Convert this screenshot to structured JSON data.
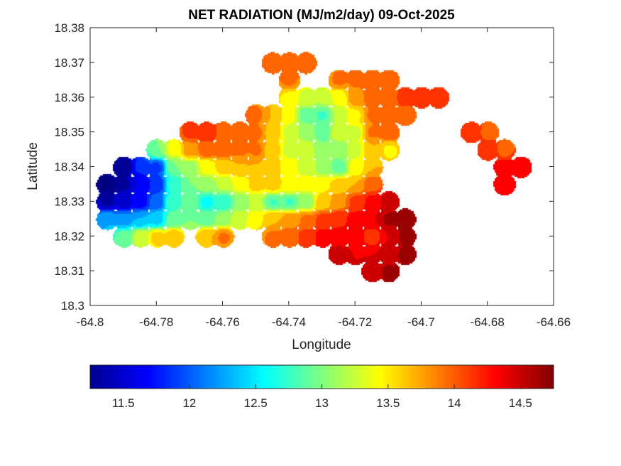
{
  "chart_data": {
    "type": "heatmap",
    "title": "NET RADIATION (MJ/m2/day) 09-Oct-2025",
    "xlabel": "Longitude",
    "ylabel": "Latitude",
    "xlim": [
      -64.8,
      -64.66
    ],
    "ylim": [
      18.3,
      18.38
    ],
    "xticks": [
      -64.8,
      -64.78,
      -64.76,
      -64.74,
      -64.72,
      -64.7,
      -64.68,
      -64.66
    ],
    "xtick_labels": [
      "-64.8",
      "-64.78",
      "-64.76",
      "-64.74",
      "-64.72",
      "-64.7",
      "-64.68",
      "-64.66"
    ],
    "yticks": [
      18.3,
      18.31,
      18.32,
      18.33,
      18.34,
      18.35,
      18.36,
      18.37,
      18.38
    ],
    "ytick_labels": [
      "18.3",
      "18.31",
      "18.32",
      "18.33",
      "18.34",
      "18.35",
      "18.36",
      "18.37",
      "18.38"
    ],
    "grid": false,
    "colormap": "jet",
    "clim": [
      11.25,
      14.75
    ],
    "colorbar": {
      "location": "bottom",
      "ticks": [
        11.5,
        12,
        12.5,
        13,
        13.5,
        14,
        14.5
      ],
      "tick_labels": [
        "11.5",
        "12",
        "12.5",
        "13",
        "13.5",
        "14",
        "14.5"
      ]
    },
    "contour_levels": 20,
    "grid_data": {
      "note": "values in MJ/m2/day sampled at approximate lon/lat points over land; null = no data (sea)",
      "lon": [
        -64.795,
        -64.79,
        -64.785,
        -64.78,
        -64.775,
        -64.77,
        -64.765,
        -64.76,
        -64.755,
        -64.75,
        -64.745,
        -64.74,
        -64.735,
        -64.73,
        -64.725,
        -64.72,
        -64.715,
        -64.71,
        -64.705,
        -64.7,
        -64.695,
        -64.69,
        -64.685,
        -64.68,
        -64.675,
        -64.67,
        -64.665
      ],
      "lat": [
        18.37,
        18.365,
        18.36,
        18.355,
        18.35,
        18.345,
        18.34,
        18.335,
        18.33,
        18.325,
        18.32,
        18.315,
        18.31
      ],
      "values": [
        [
          null,
          null,
          null,
          null,
          null,
          null,
          null,
          null,
          null,
          null,
          14.0,
          14.0,
          14.0,
          null,
          null,
          null,
          null,
          null,
          null,
          null,
          null,
          null,
          null,
          null,
          null,
          null,
          null
        ],
        [
          null,
          null,
          null,
          null,
          null,
          null,
          null,
          null,
          null,
          null,
          null,
          13.9,
          null,
          null,
          13.9,
          13.9,
          14.0,
          14.0,
          null,
          null,
          null,
          null,
          null,
          null,
          null,
          null,
          null
        ],
        [
          null,
          null,
          null,
          null,
          null,
          null,
          null,
          null,
          null,
          null,
          null,
          13.5,
          13.3,
          13.2,
          13.4,
          13.8,
          14.0,
          14.0,
          14.1,
          14.1,
          14.1,
          null,
          null,
          null,
          null,
          null,
          null
        ],
        [
          null,
          null,
          null,
          null,
          null,
          null,
          null,
          null,
          null,
          13.9,
          13.7,
          13.4,
          12.9,
          12.8,
          13.2,
          13.5,
          13.9,
          14.0,
          14.0,
          null,
          null,
          null,
          null,
          null,
          null,
          null,
          null
        ],
        [
          null,
          null,
          null,
          null,
          null,
          14.1,
          14.2,
          14.0,
          14.0,
          13.9,
          13.6,
          13.3,
          13.1,
          12.9,
          13.3,
          13.3,
          13.9,
          14.0,
          null,
          null,
          null,
          null,
          14.2,
          14.0,
          null,
          null,
          null
        ],
        [
          null,
          null,
          null,
          13.0,
          13.4,
          13.8,
          14.0,
          14.0,
          13.9,
          13.9,
          13.6,
          13.3,
          13.3,
          13.0,
          13.0,
          13.3,
          13.7,
          13.5,
          null,
          null,
          null,
          null,
          null,
          14.2,
          14.0,
          null,
          null
        ],
        [
          null,
          11.3,
          11.8,
          11.9,
          13.0,
          13.1,
          13.4,
          13.6,
          13.7,
          13.7,
          13.6,
          13.4,
          13.3,
          13.1,
          12.9,
          13.4,
          13.7,
          null,
          null,
          null,
          null,
          null,
          null,
          null,
          14.3,
          14.4,
          null
        ],
        [
          11.2,
          11.4,
          11.6,
          11.8,
          12.7,
          13.0,
          13.1,
          13.2,
          13.4,
          13.6,
          13.6,
          13.5,
          13.4,
          13.5,
          13.6,
          13.7,
          14.0,
          null,
          null,
          null,
          null,
          null,
          null,
          null,
          14.4,
          null,
          null
        ],
        [
          11.4,
          11.5,
          11.7,
          12.0,
          12.8,
          12.9,
          12.6,
          12.7,
          13.0,
          13.2,
          12.8,
          12.8,
          13.0,
          13.6,
          13.8,
          14.1,
          14.3,
          14.5,
          null,
          null,
          null,
          null,
          null,
          null,
          null,
          null,
          null
        ],
        [
          12.3,
          12.2,
          12.3,
          12.4,
          12.9,
          13.0,
          12.9,
          13.1,
          13.3,
          13.5,
          13.7,
          13.8,
          13.9,
          14.1,
          14.2,
          14.3,
          14.4,
          14.6,
          14.7,
          null,
          null,
          null,
          null,
          null,
          null,
          null,
          null
        ],
        [
          null,
          12.9,
          13.3,
          13.6,
          13.7,
          null,
          13.7,
          13.9,
          null,
          null,
          13.9,
          14.0,
          14.1,
          14.3,
          14.3,
          14.3,
          14.1,
          14.4,
          14.6,
          null,
          null,
          null,
          null,
          null,
          null,
          null,
          null
        ],
        [
          null,
          null,
          null,
          null,
          null,
          null,
          null,
          null,
          null,
          null,
          null,
          null,
          null,
          null,
          14.5,
          14.4,
          14.4,
          14.5,
          14.6,
          null,
          null,
          null,
          null,
          null,
          null,
          null,
          null
        ],
        [
          null,
          null,
          null,
          null,
          null,
          null,
          null,
          null,
          null,
          null,
          null,
          null,
          null,
          null,
          null,
          null,
          14.5,
          14.6,
          null,
          null,
          null,
          null,
          null,
          null,
          null,
          null,
          null
        ]
      ]
    }
  }
}
